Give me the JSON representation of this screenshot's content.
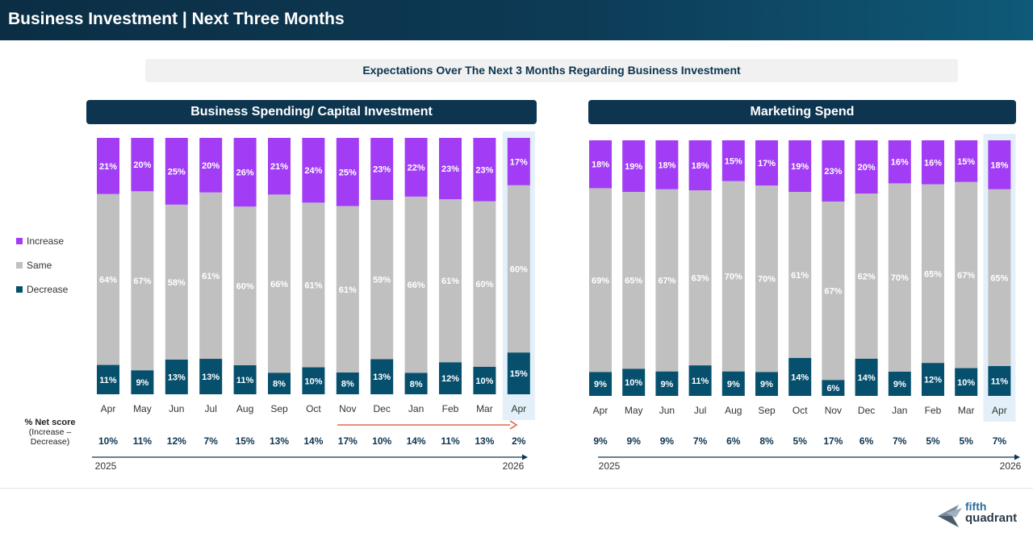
{
  "header": {
    "title": "Business Investment | Next Three Months"
  },
  "subtitle": "Expectations Over The Next 3 Months Regarding Business Investment",
  "legend": [
    {
      "label": "Increase",
      "color": "#a23df5"
    },
    {
      "label": "Same",
      "color": "#c0c0c0"
    },
    {
      "label": "Decrease",
      "color": "#06506e"
    }
  ],
  "net_score_label": {
    "title": "% Net score",
    "sub": "(Increase – Decrease)"
  },
  "colors": {
    "increase": "#a23df5",
    "same": "#c0c0c0",
    "decrease": "#06506e",
    "arrow": "#e06a52",
    "highlight": "#e3f0f9",
    "axis": "#0d3550"
  },
  "chart_data": [
    {
      "type": "bar",
      "stacked": true,
      "title": "Business Spending/ Capital Investment",
      "categories": [
        "Apr",
        "May",
        "Jun",
        "Jul",
        "Aug",
        "Sep",
        "Oct",
        "Nov",
        "Dec",
        "Jan",
        "Feb",
        "Mar",
        "Apr"
      ],
      "series": [
        {
          "name": "Decrease",
          "values": [
            11,
            9,
            13,
            13,
            11,
            8,
            10,
            8,
            13,
            8,
            12,
            10,
            15
          ]
        },
        {
          "name": "Same",
          "values": [
            64,
            67,
            58,
            61,
            60,
            66,
            61,
            61,
            59,
            66,
            61,
            60,
            60
          ]
        },
        {
          "name": "Increase",
          "values": [
            21,
            20,
            25,
            20,
            26,
            21,
            24,
            25,
            23,
            22,
            23,
            23,
            17
          ]
        }
      ],
      "net_score": [
        "10%",
        "11%",
        "12%",
        "7%",
        "15%",
        "13%",
        "14%",
        "17%",
        "10%",
        "14%",
        "11%",
        "13%",
        "2%"
      ],
      "years": {
        "start": "2025",
        "end": "2026"
      },
      "highlighted_category_index": 12
    },
    {
      "type": "bar",
      "stacked": true,
      "title": "Marketing Spend",
      "categories": [
        "Apr",
        "May",
        "Jun",
        "Jul",
        "Aug",
        "Sep",
        "Oct",
        "Nov",
        "Dec",
        "Jan",
        "Feb",
        "Mar",
        "Apr"
      ],
      "series": [
        {
          "name": "Decrease",
          "values": [
            9,
            10,
            9,
            11,
            9,
            9,
            14,
            6,
            14,
            9,
            12,
            10,
            11
          ]
        },
        {
          "name": "Same",
          "values": [
            69,
            65,
            67,
            63,
            70,
            70,
            61,
            67,
            62,
            70,
            65,
            67,
            65
          ]
        },
        {
          "name": "Increase",
          "values": [
            18,
            19,
            18,
            18,
            15,
            17,
            19,
            23,
            20,
            16,
            16,
            15,
            18
          ]
        }
      ],
      "net_score": [
        "9%",
        "9%",
        "9%",
        "7%",
        "6%",
        "8%",
        "5%",
        "17%",
        "6%",
        "7%",
        "5%",
        "5%",
        "7%"
      ],
      "years": {
        "start": "2025",
        "end": "2026"
      },
      "highlighted_category_index": 12
    }
  ],
  "logo": {
    "line1": "fifth",
    "line2": "quadrant"
  }
}
